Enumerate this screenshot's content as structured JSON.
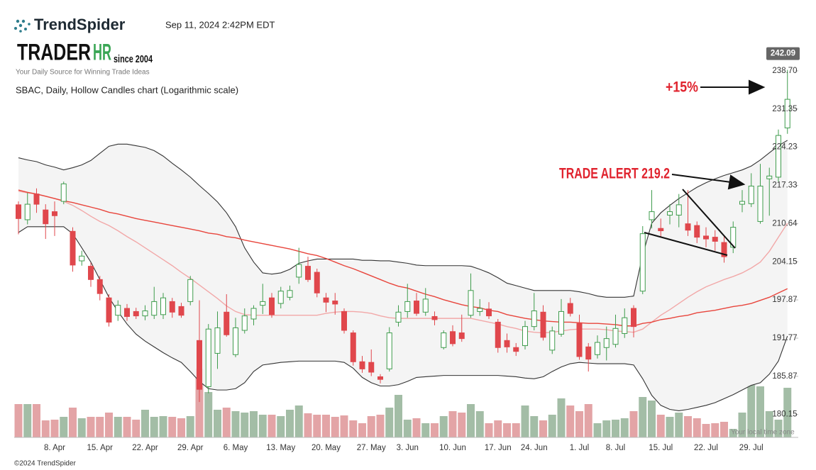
{
  "header": {
    "brand": "TrendSpider",
    "timestamp": "Sep 11, 2024 2:42PM EDT",
    "logo_main": "TRADER",
    "logo_accent": "HR",
    "logo_since": "since 2004",
    "tagline": "Your Daily Source for Winning Trade Ideas"
  },
  "footer": "©2024 TrendSpider",
  "timezone_note": "Your local time zone",
  "chart_data": {
    "type": "candlestick",
    "title": "SBAC, Daily, Hollow Candles chart (Logarithmic scale)",
    "log_scale": true,
    "ylim": [
      176.8,
      244.3
    ],
    "yticks": [
      180.15,
      185.87,
      191.77,
      197.87,
      204.15,
      210.64,
      217.33,
      224.23,
      231.35,
      {
        "value": 238.7,
        "label": "238.70"
      }
    ],
    "last_price": 242.09,
    "up_color": "#3f9c4d",
    "down_color": "#e0474c",
    "volume_up_color": "#a3bda6",
    "volume_down_color": "#e3a4a6",
    "volume_lim": [
      0,
      100
    ],
    "categories": [
      null,
      null,
      null,
      null,
      "8. Apr",
      null,
      null,
      null,
      null,
      "15. Apr",
      null,
      null,
      null,
      null,
      "22. Apr",
      null,
      null,
      null,
      null,
      "29. Apr",
      null,
      null,
      null,
      null,
      "6. May",
      null,
      null,
      null,
      null,
      "13. May",
      null,
      null,
      null,
      null,
      "20. May",
      null,
      null,
      null,
      null,
      "27. May",
      null,
      null,
      null,
      "3. Jun",
      null,
      null,
      null,
      null,
      "10. Jun",
      null,
      null,
      null,
      null,
      "17. Jun",
      null,
      null,
      null,
      "24. Jun",
      null,
      null,
      null,
      null,
      "1. Jul",
      null,
      null,
      null,
      "8. Jul",
      null,
      null,
      null,
      null,
      "15. Jul",
      null,
      null,
      null,
      null,
      "22. Jul",
      null,
      null,
      null,
      null,
      "29. Jul",
      null,
      null,
      null,
      null
    ],
    "open": [
      213.9,
      211.3,
      215.8,
      213,
      212.7,
      214.5,
      209.3,
      204.3,
      203.4,
      201.2,
      198.2,
      195.4,
      196.5,
      196.0,
      195.3,
      195.4,
      195.5,
      197.6,
      196.8,
      197.6,
      191.4,
      184.3,
      189.4,
      195.9,
      189.2,
      193.0,
      194.8,
      197.0,
      198.2,
      197.3,
      198.3,
      201.6,
      203.4,
      202.4,
      198.2,
      197.7,
      196.0,
      192.6,
      188.1,
      188.0,
      185.8,
      187.0,
      194.3,
      196.0,
      197.7,
      195.9,
      195.2,
      190.3,
      192.8,
      192.6,
      195.4,
      196.0,
      196.4,
      194.3,
      191.4,
      190.3,
      190.6,
      193.6,
      195.9,
      189.9,
      192.4,
      197.3,
      194.1,
      190.4,
      189.2,
      190.3,
      190.8,
      192.5,
      196.5,
      199.3,
      211.3,
      209.8,
      212.1,
      212.1,
      210.6,
      210.3,
      208.5,
      208.3,
      207.4,
      206.6,
      214.0,
      214.1,
      211.0,
      218.5,
      218.8,
      227.8
    ],
    "high": [
      214.5,
      216,
      216.8,
      214,
      214.5,
      218,
      210,
      206,
      204,
      201.8,
      198.8,
      197.8,
      197.2,
      196.6,
      197,
      200,
      199,
      198.2,
      197.4,
      201.8,
      197.8,
      194.0,
      196,
      198.8,
      195,
      196.5,
      197,
      200.5,
      199,
      200,
      200.2,
      206.5,
      205,
      203,
      199,
      199,
      196.5,
      193,
      189,
      190,
      186.2,
      193.5,
      197,
      200.5,
      199,
      199.8,
      196,
      193,
      193.8,
      195.5,
      202.2,
      198,
      197.5,
      194.8,
      192.5,
      191,
      194.5,
      199,
      197,
      193.6,
      198,
      198.2,
      195.5,
      191,
      192.2,
      193.6,
      195.5,
      196.5,
      197,
      210.2,
      216.5,
      211.5,
      214,
      215.8,
      216.5,
      211,
      210,
      209.5,
      208.5,
      211,
      216.5,
      219.5,
      221.2,
      220.5,
      227.5,
      238.9
    ],
    "low": [
      208.8,
      210.5,
      212.5,
      208,
      208.5,
      214,
      202.5,
      203.5,
      200,
      197.8,
      193.6,
      194.5,
      194.5,
      194.8,
      194.6,
      194.8,
      194.8,
      195,
      195,
      197,
      182,
      183.3,
      187,
      192,
      188.8,
      192.5,
      193.8,
      195.6,
      195,
      196.5,
      197.8,
      200.5,
      200.8,
      198.3,
      195.9,
      195.5,
      192.5,
      187.5,
      186.4,
      185.9,
      184.8,
      186.6,
      193.6,
      195,
      195.3,
      195.3,
      193.8,
      190,
      190.5,
      191.2,
      195,
      195.3,
      194.8,
      189.5,
      189.5,
      189,
      190,
      193,
      191.4,
      189.3,
      192,
      195.2,
      188.4,
      186.6,
      188.6,
      188.3,
      190.3,
      191.8,
      191.9,
      198.8,
      209.8,
      208.3,
      210.5,
      210,
      208.5,
      207.3,
      206.6,
      206,
      204,
      205.6,
      212.6,
      213.5,
      210.6,
      212,
      218,
      226.7
    ],
    "close": [
      211.5,
      214.0,
      214,
      210.6,
      212.0,
      217.6,
      203.6,
      205.1,
      201.2,
      198.9,
      194.3,
      197.0,
      195.2,
      195.3,
      196.1,
      197.6,
      198.2,
      195.9,
      195.4,
      201.2,
      183.9,
      193.2,
      193.4,
      192.3,
      193.4,
      195.3,
      196.5,
      197.6,
      195.5,
      199.3,
      199.4,
      203.7,
      201.2,
      199.0,
      197.5,
      197.2,
      193.0,
      188.1,
      187.0,
      186.5,
      185.4,
      192.6,
      195.9,
      197.6,
      195.7,
      198,
      194.7,
      192.6,
      190.9,
      191.7,
      199.4,
      196.5,
      195.3,
      190.3,
      190.4,
      189.7,
      193.6,
      196.1,
      191.9,
      192.9,
      196,
      195.7,
      188.9,
      188.5,
      191.1,
      191.7,
      193.3,
      195,
      193.6,
      208.9,
      212.7,
      209.4,
      212.7,
      213.9,
      209.5,
      208.3,
      208.0,
      207.6,
      205,
      210.0,
      214.5,
      217.2,
      217.2,
      219.0,
      226.4,
      233.2
    ],
    "volume": [
      47,
      47,
      47,
      24,
      25,
      29,
      42,
      27,
      29,
      29,
      35,
      29,
      29,
      25,
      39,
      29,
      30,
      29,
      27,
      30,
      97,
      64,
      39,
      42,
      37,
      35,
      37,
      32,
      32,
      30,
      39,
      45,
      34,
      32,
      32,
      29,
      31,
      24,
      20,
      30,
      32,
      42,
      60,
      25,
      27,
      20,
      20,
      30,
      37,
      35,
      47,
      37,
      20,
      24,
      20,
      20,
      45,
      30,
      24,
      32,
      55,
      45,
      37,
      47,
      20,
      24,
      25,
      27,
      37,
      57,
      52,
      32,
      29,
      35,
      30,
      27,
      19,
      20,
      22,
      12,
      35,
      74,
      72,
      37,
      25,
      70
    ],
    "bands": {
      "color": "#333333",
      "fill": "#f3f3f3",
      "upper": [
        222.3,
        221.9,
        221.6,
        221.0,
        220.6,
        220.1,
        220.5,
        221.0,
        221.8,
        223.1,
        224.4,
        224.8,
        224.8,
        224.5,
        224.2,
        223.6,
        222.6,
        221.3,
        220.1,
        218.8,
        217.3,
        215.9,
        214.4,
        212.5,
        210.1,
        206.5,
        204.1,
        202.3,
        202.1,
        202.3,
        202.9,
        203.9,
        204.3,
        204.6,
        204.6,
        204.6,
        204.6,
        204.6,
        204.4,
        204.4,
        204.3,
        204.3,
        204.1,
        203.9,
        203.6,
        203.5,
        203.5,
        203.5,
        203.5,
        203.5,
        203.4,
        202.9,
        202.3,
        201.5,
        200.6,
        200.2,
        199.8,
        199.4,
        199.4,
        199.4,
        199.4,
        199.4,
        199.2,
        198.9,
        198.5,
        198.3,
        198.3,
        198.3,
        198.5,
        205.3,
        210.7,
        212.5,
        213.8,
        215.0,
        216.0,
        217.0,
        217.8,
        218.5,
        219.1,
        219.6,
        220.1,
        220.8,
        221.9,
        223.2,
        224.5,
        225.5
      ],
      "lower": [
        209.1,
        210.1,
        210.1,
        210.1,
        210.1,
        210.1,
        208.9,
        206.5,
        204.1,
        201.2,
        198.3,
        196.0,
        194.0,
        192.4,
        191.3,
        190.4,
        189.5,
        188.7,
        188.0,
        186.6,
        185.1,
        184.0,
        183.8,
        183.8,
        184.0,
        184.9,
        186.6,
        187.6,
        187.8,
        188.0,
        188.1,
        188.2,
        188.2,
        188.2,
        188.2,
        188.2,
        188.0,
        187.1,
        185.7,
        184.9,
        184.4,
        184.4,
        184.6,
        185.1,
        185.7,
        185.8,
        185.9,
        186.0,
        186.0,
        186.0,
        186.0,
        186.0,
        186.0,
        186.0,
        185.9,
        185.8,
        185.6,
        185.5,
        185.8,
        186.6,
        187.3,
        187.8,
        188.0,
        187.9,
        187.8,
        187.8,
        187.8,
        187.8,
        187.6,
        185.5,
        183.0,
        181.5,
        180.9,
        180.7,
        180.9,
        181.2,
        181.5,
        181.9,
        182.5,
        183.1,
        183.8,
        184.5,
        184.9,
        186.2,
        188.2,
        192.1
      ]
    },
    "lines": [
      {
        "color": "#f2a8a8",
        "values": [
          216.3,
          216.0,
          215.8,
          215.4,
          215.0,
          214.5,
          213.8,
          212.9,
          211.9,
          211.0,
          210.3,
          209.4,
          208.4,
          207.5,
          206.5,
          205.5,
          204.5,
          203.5,
          202.4,
          201.4,
          200.3,
          199.2,
          198.1,
          196.9,
          196.0,
          195.5,
          195.4,
          195.4,
          195.4,
          195.4,
          195.4,
          195.4,
          195.4,
          195.4,
          195.7,
          195.9,
          196.0,
          196.0,
          195.9,
          195.7,
          195.3,
          195.0,
          194.9,
          194.9,
          194.9,
          194.9,
          194.9,
          194.9,
          194.9,
          194.9,
          194.9,
          194.6,
          194.3,
          194.0,
          193.6,
          193.3,
          192.9,
          192.7,
          192.6,
          192.7,
          192.9,
          193.1,
          193.2,
          193.2,
          193.2,
          193.1,
          192.9,
          192.8,
          192.7,
          193.2,
          194.3,
          195.4,
          196.3,
          197.3,
          198.3,
          199.2,
          200.0,
          200.6,
          201.2,
          201.7,
          202.3,
          203.1,
          204.1,
          205.9,
          208.3,
          210.7
        ]
      },
      {
        "color": "#e8453c",
        "values": [
          216.5,
          216.1,
          215.8,
          215.4,
          215.0,
          214.6,
          214.3,
          213.9,
          213.5,
          213.1,
          212.6,
          212.3,
          211.9,
          211.5,
          211.2,
          210.9,
          210.6,
          210.3,
          210.0,
          209.7,
          209.4,
          209.0,
          208.8,
          208.4,
          208.2,
          207.8,
          207.5,
          207.2,
          206.9,
          206.6,
          206.3,
          205.9,
          205.5,
          205.2,
          204.7,
          204.1,
          203.5,
          203.0,
          202.4,
          201.8,
          201.2,
          200.6,
          200.1,
          199.8,
          199.3,
          198.8,
          198.4,
          197.9,
          197.5,
          197.1,
          196.8,
          196.6,
          196.2,
          196.0,
          195.5,
          195.2,
          194.9,
          194.7,
          194.5,
          194.4,
          194.3,
          194.3,
          194.2,
          194.1,
          194.1,
          194.0,
          193.9,
          193.7,
          193.7,
          194.1,
          194.3,
          194.7,
          194.9,
          195.2,
          195.4,
          195.8,
          196.0,
          196.2,
          196.5,
          196.8,
          197.0,
          197.3,
          197.8,
          198.3,
          199.0,
          199.7
        ]
      }
    ],
    "annotations": [
      "+15%",
      "TRADE ALERT 219.2"
    ],
    "annotation_color": "#e0232e"
  }
}
